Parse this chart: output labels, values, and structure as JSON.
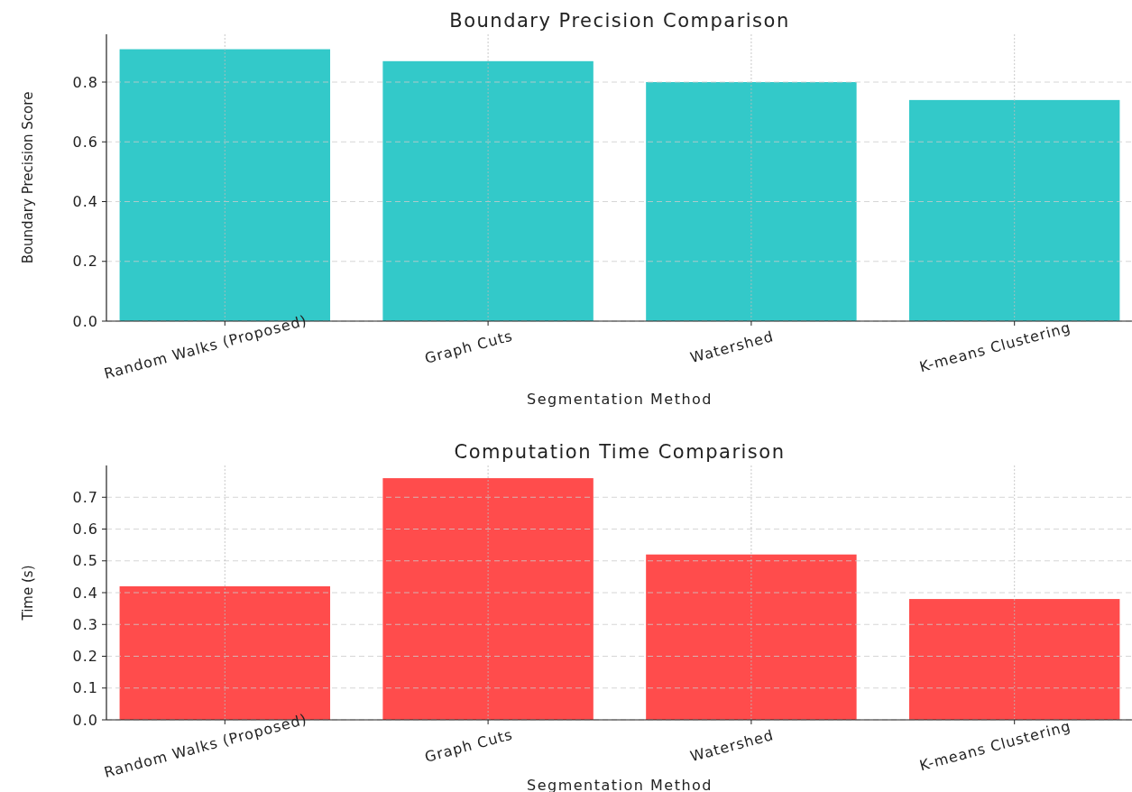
{
  "chart_data": [
    {
      "type": "bar",
      "title": "Boundary Precision Comparison",
      "xlabel": "Segmentation Method",
      "ylabel": "Boundary Precision Score",
      "categories": [
        "Random Walks (Proposed)",
        "Graph Cuts",
        "Watershed",
        "K-means Clustering"
      ],
      "values": [
        0.91,
        0.87,
        0.8,
        0.74
      ],
      "color": "#33c9c9",
      "ylim": [
        0,
        0.96
      ],
      "yticks": [
        {
          "value": 0,
          "label": "0.0"
        },
        {
          "value": 0.2,
          "label": "0.2"
        },
        {
          "value": 0.4,
          "label": "0.4"
        },
        {
          "value": 0.6,
          "label": "0.6"
        },
        {
          "value": 0.8,
          "label": "0.8"
        }
      ],
      "grid": true
    },
    {
      "type": "bar",
      "title": "Computation Time Comparison",
      "xlabel": "Segmentation Method",
      "ylabel": "Time (s)",
      "categories": [
        "Random Walks (Proposed)",
        "Graph Cuts",
        "Watershed",
        "K-means Clustering"
      ],
      "values": [
        0.42,
        0.76,
        0.52,
        0.38
      ],
      "color": "#ff4c4c",
      "ylim": [
        0,
        0.8
      ],
      "yticks": [
        {
          "value": 0,
          "label": "0.0"
        },
        {
          "value": 0.1,
          "label": "0.1"
        },
        {
          "value": 0.2,
          "label": "0.2"
        },
        {
          "value": 0.3,
          "label": "0.3"
        },
        {
          "value": 0.4,
          "label": "0.4"
        },
        {
          "value": 0.5,
          "label": "0.5"
        },
        {
          "value": 0.6,
          "label": "0.6"
        },
        {
          "value": 0.7,
          "label": "0.7"
        }
      ],
      "grid": true
    }
  ]
}
